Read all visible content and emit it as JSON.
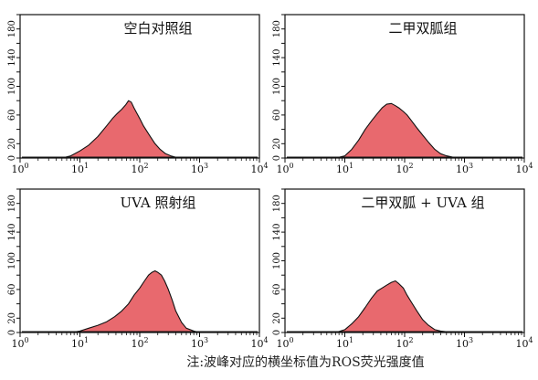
{
  "note": "注:波峰对应的横坐标值为ROS荧光强度值",
  "colors": {
    "fill": "#e8696e",
    "stroke": "#111111"
  },
  "chart_data": [
    {
      "type": "area",
      "title": "空白对照组",
      "x_scale": "log",
      "xlim": [
        1,
        10000
      ],
      "ylim": [
        0,
        200
      ],
      "x_ticks": [
        "10^0",
        "10^1",
        "10^2",
        "10^3",
        "10^4"
      ],
      "y_ticks": [
        "0",
        "20",
        "60",
        "100",
        "140",
        "180"
      ],
      "x": [
        5,
        7,
        10,
        14,
        20,
        28,
        35,
        42,
        50,
        58,
        65,
        72,
        80,
        90,
        100,
        115,
        130,
        150,
        180,
        220,
        270,
        330,
        400,
        500
      ],
      "y": [
        0,
        3,
        10,
        18,
        30,
        45,
        55,
        62,
        68,
        74,
        80,
        78,
        70,
        62,
        55,
        45,
        38,
        30,
        20,
        12,
        6,
        3,
        1,
        0
      ]
    },
    {
      "type": "area",
      "title": "二甲双胍组",
      "x_scale": "log",
      "xlim": [
        1,
        10000
      ],
      "ylim": [
        0,
        200
      ],
      "x_ticks": [
        "10^0",
        "10^1",
        "10^2",
        "10^3",
        "10^4"
      ],
      "y_ticks": [
        "0",
        "20",
        "60",
        "100",
        "140",
        "180"
      ],
      "x": [
        7,
        10,
        13,
        17,
        22,
        28,
        35,
        42,
        50,
        60,
        70,
        80,
        95,
        110,
        130,
        160,
        200,
        250,
        320,
        400,
        500,
        650,
        800
      ],
      "y": [
        0,
        3,
        12,
        25,
        40,
        52,
        62,
        70,
        75,
        76,
        73,
        70,
        65,
        60,
        52,
        42,
        32,
        22,
        12,
        6,
        3,
        1,
        0
      ]
    },
    {
      "type": "area",
      "title": "UVA 照射组",
      "x_scale": "log",
      "xlim": [
        1,
        10000
      ],
      "ylim": [
        0,
        200
      ],
      "x_ticks": [
        "10^0",
        "10^1",
        "10^2",
        "10^3",
        "10^4"
      ],
      "y_ticks": [
        "0",
        "20",
        "60",
        "100",
        "140",
        "180"
      ],
      "x": [
        7,
        10,
        14,
        20,
        28,
        38,
        50,
        65,
        80,
        100,
        120,
        140,
        160,
        180,
        200,
        230,
        260,
        300,
        350,
        400,
        500,
        600,
        800,
        1000
      ],
      "y": [
        0,
        2,
        6,
        10,
        15,
        22,
        30,
        40,
        52,
        62,
        72,
        80,
        84,
        86,
        84,
        80,
        72,
        60,
        45,
        30,
        14,
        6,
        2,
        0
      ]
    },
    {
      "type": "area",
      "title": "二甲双胍 + UVA 组",
      "x_scale": "log",
      "xlim": [
        1,
        10000
      ],
      "ylim": [
        0,
        200
      ],
      "x_ticks": [
        "10^0",
        "10^1",
        "10^2",
        "10^3",
        "10^4"
      ],
      "y_ticks": [
        "0",
        "20",
        "60",
        "100",
        "140",
        "180"
      ],
      "x": [
        7,
        10,
        13,
        17,
        22,
        28,
        35,
        42,
        50,
        60,
        70,
        80,
        95,
        110,
        130,
        160,
        200,
        250,
        320,
        400,
        500,
        650
      ],
      "y": [
        0,
        4,
        12,
        22,
        35,
        48,
        58,
        62,
        66,
        70,
        72,
        68,
        62,
        52,
        42,
        30,
        18,
        10,
        4,
        2,
        1,
        0
      ]
    }
  ]
}
